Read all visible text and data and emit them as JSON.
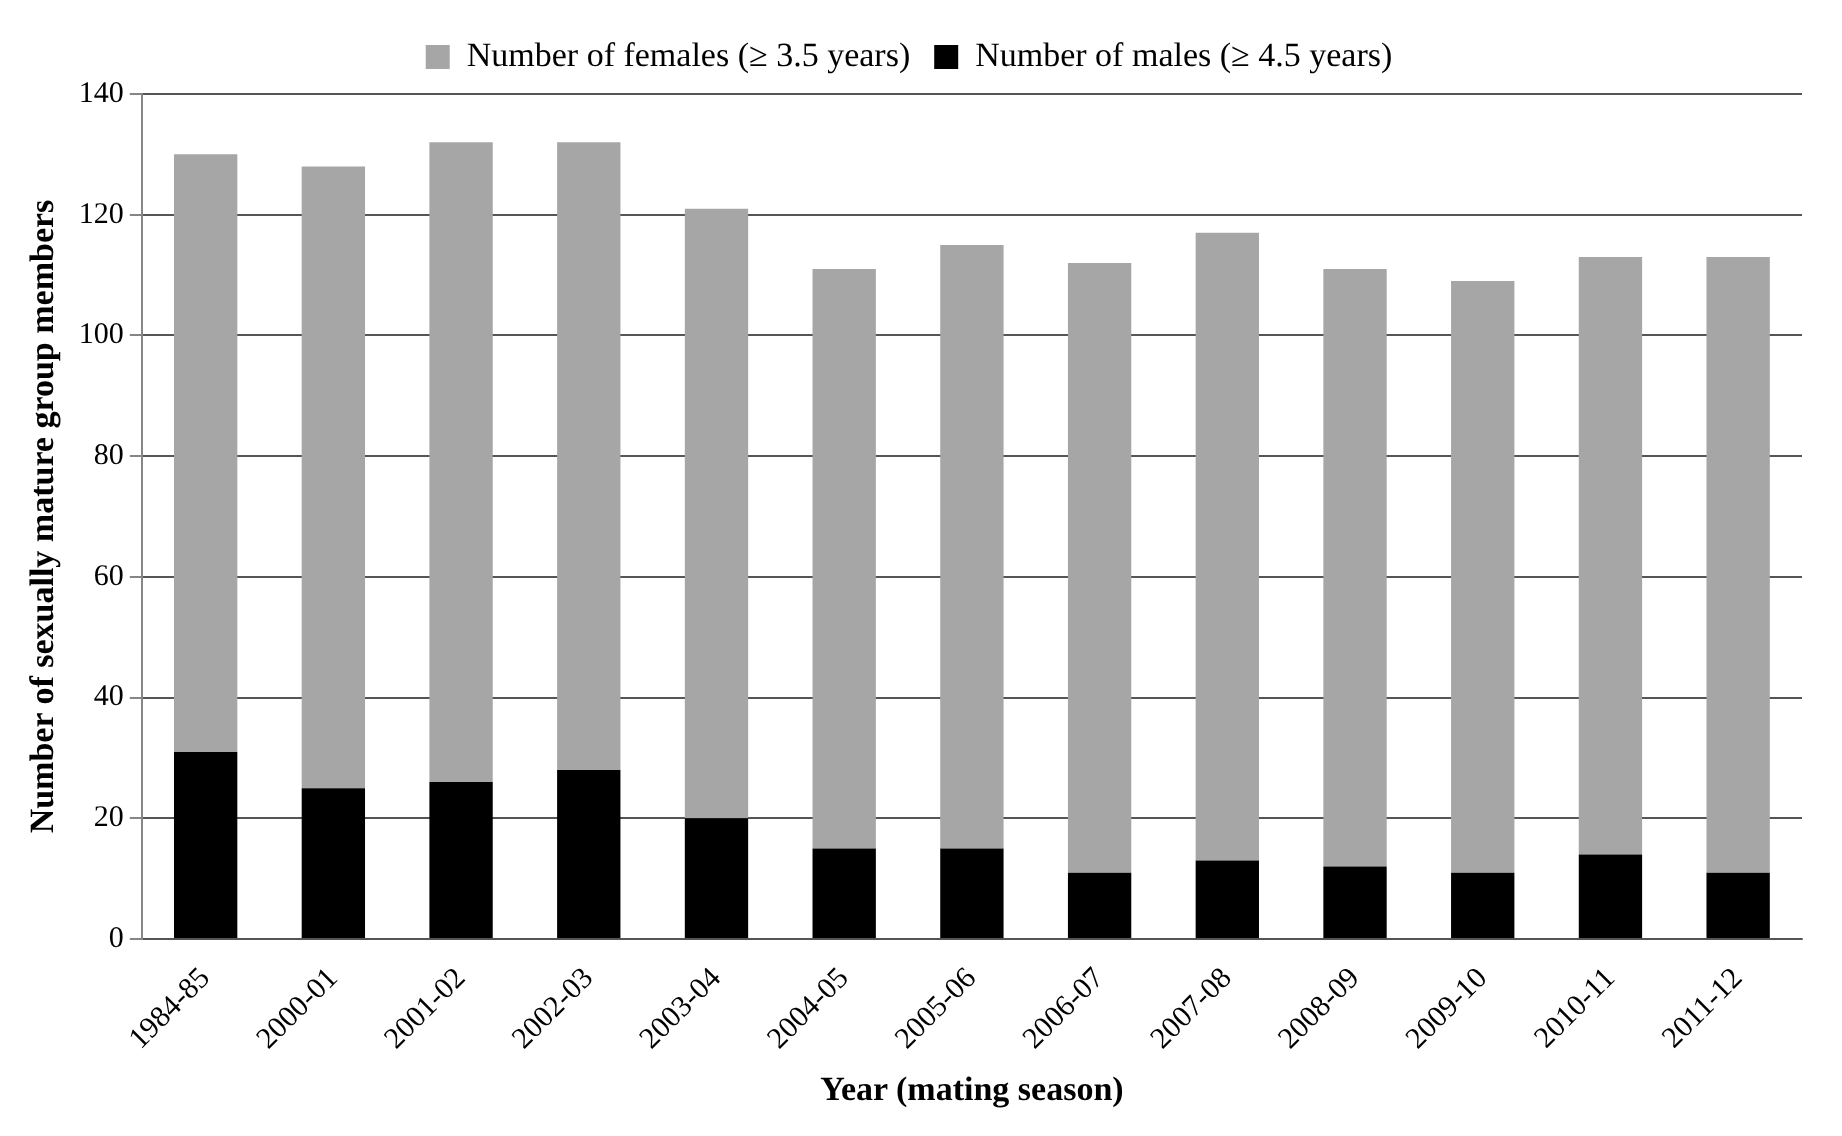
{
  "chart_data": {
    "type": "bar",
    "stacked": true,
    "xlabel": "Year (mating season)",
    "ylabel": "Number of sexually mature group members",
    "categories": [
      "1984-85",
      "2000-01",
      "2001-02",
      "2002-03",
      "2003-04",
      "2004-05",
      "2005-06",
      "2006-07",
      "2007-08",
      "2008-09",
      "2009-10",
      "2010-11",
      "2011-12"
    ],
    "series": [
      {
        "name": "Number of males (≥ 4.5 years)",
        "color": "#000000",
        "values": [
          31,
          25,
          26,
          28,
          20,
          15,
          15,
          11,
          13,
          12,
          11,
          14,
          11
        ]
      },
      {
        "name": "Number of females (≥ 3.5 years)",
        "color": "#a6a6a6",
        "values": [
          99,
          103,
          106,
          104,
          101,
          96,
          100,
          101,
          104,
          99,
          98,
          99,
          102
        ]
      }
    ],
    "ylim": [
      0,
      140
    ],
    "yticks": [
      0,
      20,
      40,
      60,
      80,
      100,
      120,
      140
    ],
    "grid": "y",
    "legend": "top"
  }
}
